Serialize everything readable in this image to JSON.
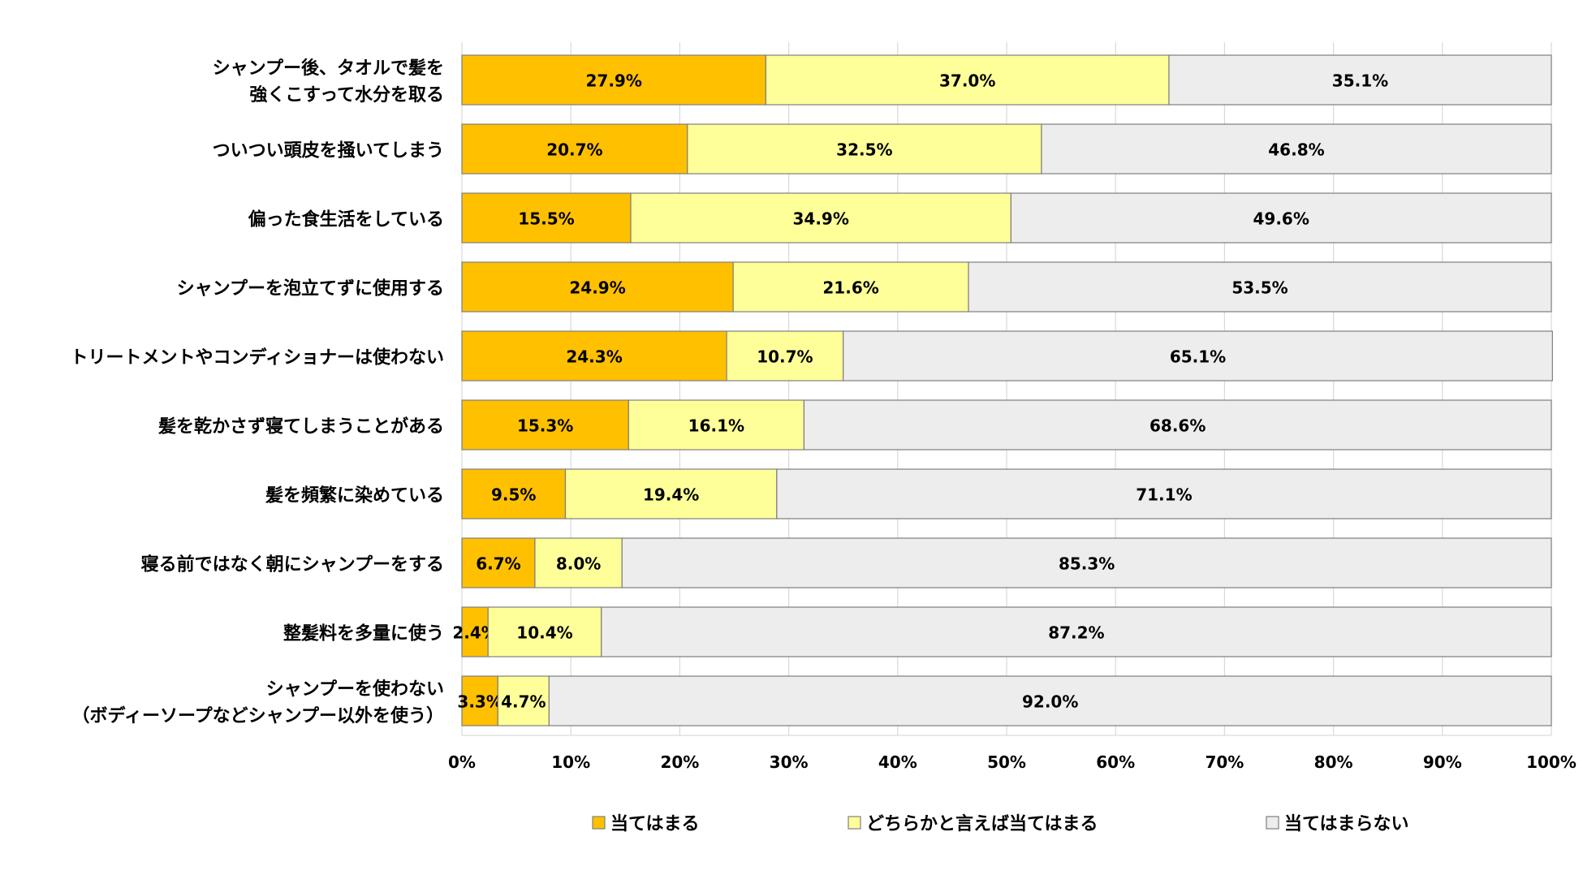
{
  "chart_data": {
    "type": "bar",
    "orientation": "horizontal",
    "stacked": "percent",
    "categories": [
      [
        "シャンプー後、タオルで髪を",
        "強くこすって水分を取る"
      ],
      [
        "ついつい頭皮を掻いてしまう"
      ],
      [
        "偏った食生活をしている"
      ],
      [
        "シャンプーを泡立てずに使用する"
      ],
      [
        "トリートメントやコンディショナーは使わない"
      ],
      [
        "髪を乾かさず寝てしまうことがある"
      ],
      [
        "髪を頻繁に染めている"
      ],
      [
        "寝る前ではなく朝にシャンプーをする"
      ],
      [
        "整髪料を多量に使う"
      ],
      [
        "シャンプーを使わない",
        "（ボディーソープなどシャンプー以外を使う）"
      ]
    ],
    "series": [
      {
        "name": "当てはまる",
        "color": "#FFC000",
        "values": [
          27.9,
          20.7,
          15.5,
          24.9,
          24.3,
          15.3,
          9.5,
          6.7,
          2.4,
          3.3
        ],
        "labels": [
          "27.9%",
          "20.7%",
          "15.5%",
          "24.9%",
          "24.3%",
          "15.3%",
          "9.5%",
          "6.7%",
          "2.4%",
          "3.3%"
        ]
      },
      {
        "name": "どちらかと言えば当てはまる",
        "color": "#FFFF99",
        "values": [
          37.0,
          32.5,
          34.9,
          21.6,
          10.7,
          16.1,
          19.4,
          8.0,
          10.4,
          4.7
        ],
        "labels": [
          "37.0%",
          "32.5%",
          "34.9%",
          "21.6%",
          "10.7%",
          "16.1%",
          "19.4%",
          "8.0%",
          "10.4%",
          "4.7%"
        ]
      },
      {
        "name": "当てはまらない",
        "color": "#EDEDED",
        "values": [
          35.1,
          46.8,
          49.6,
          53.5,
          65.1,
          68.6,
          71.1,
          85.3,
          87.2,
          92.0
        ],
        "labels": [
          "35.1%",
          "46.8%",
          "49.6%",
          "53.5%",
          "65.1%",
          "68.6%",
          "71.1%",
          "85.3%",
          "87.2%",
          "92.0%"
        ]
      }
    ],
    "xticks": [
      "0%",
      "10%",
      "20%",
      "30%",
      "40%",
      "50%",
      "60%",
      "70%",
      "80%",
      "90%",
      "100%"
    ],
    "xlim": [
      0,
      100
    ],
    "grid": "vertical",
    "legend_position": "bottom",
    "title": "",
    "xlabel": "",
    "ylabel": ""
  }
}
